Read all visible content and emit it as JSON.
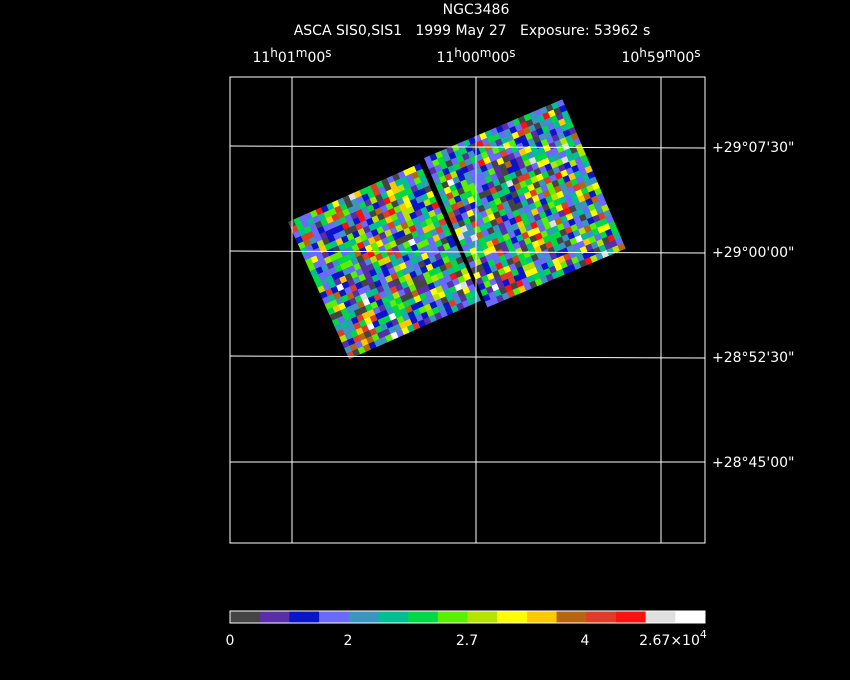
{
  "title": "NGC3486",
  "subtitle": "ASCA SIS0,SIS1   1999 May 27   Exposure: 53962 s",
  "ra_labels": [
    [
      "11",
      "h",
      "01",
      "m",
      "00",
      "s"
    ],
    [
      "11",
      "h",
      "00",
      "m",
      "00",
      "s"
    ],
    [
      "10",
      "h",
      "59",
      "m",
      "00",
      "s"
    ]
  ],
  "dec_labels": [
    "+29°07'30\"",
    "+29°00'00\"",
    "+28°52'30\"",
    "+28°45'00\""
  ],
  "colorbar": {
    "colors": [
      "#444444",
      "#5a2ea8",
      "#0a14c8",
      "#6a6aff",
      "#3a96c0",
      "#00c093",
      "#00d848",
      "#5af000",
      "#b4e400",
      "#ffff00",
      "#ffc800",
      "#b86410",
      "#e03c28",
      "#ff1010",
      "#e0e0e0",
      "#ffffff"
    ],
    "labels": [
      "0",
      "2",
      "2.7",
      "4",
      [
        "2.67×10",
        "4"
      ]
    ]
  }
}
